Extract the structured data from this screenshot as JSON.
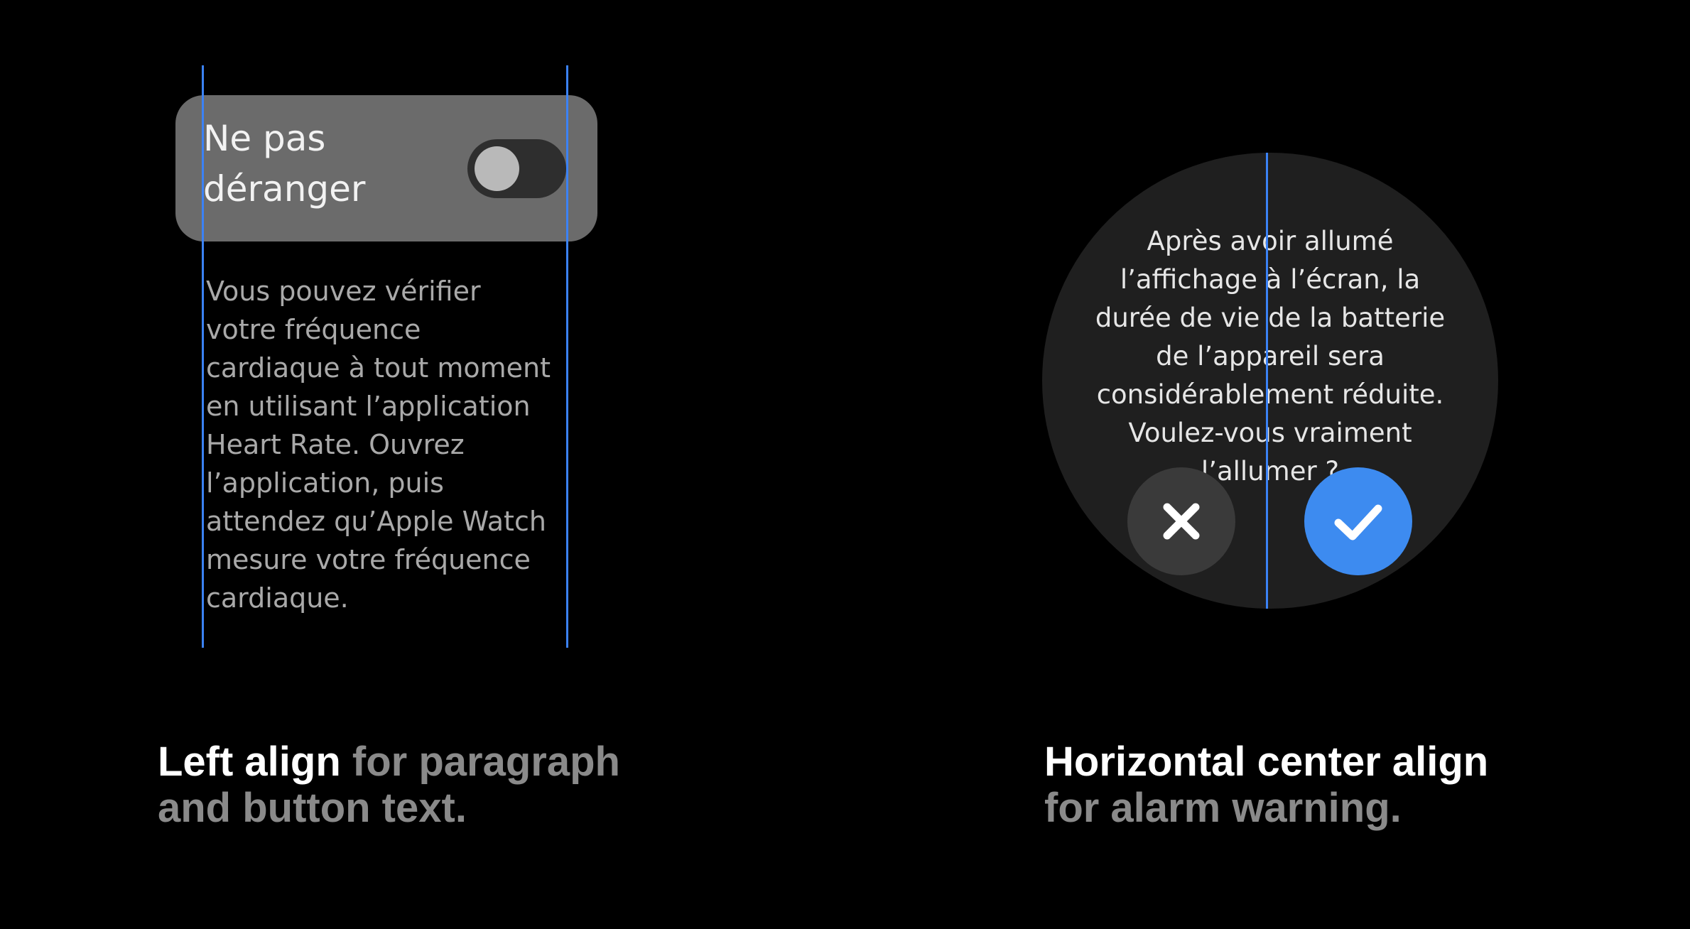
{
  "left_example": {
    "toggle": {
      "label_line1": "Ne pas",
      "label_line2": "déranger",
      "state": "off"
    },
    "paragraph_lines": [
      "Vous pouvez vérifier",
      "votre fréquence",
      "cardiaque à tout moment",
      "en utilisant l’application",
      "Heart Rate. Ouvrez",
      "l’application, puis",
      "attendez qu’Apple Watch",
      "mesure votre fréquence",
      "cardiaque."
    ],
    "caption": {
      "highlight": "Left align",
      "rest_line1": " for paragraph",
      "rest_line2": "and button text."
    }
  },
  "right_example": {
    "alert_lines": [
      "Après avoir allumé",
      "l’affichage à l’écran, la",
      "durée de vie de la batterie",
      "de l’appareil sera",
      "considérablement réduite.",
      "Voulez-vous vraiment",
      "l’allumer ?"
    ],
    "cancel_icon": "close-icon",
    "confirm_icon": "check-icon",
    "caption": {
      "highlight": "Horizontal center align",
      "rest": "for alarm warning."
    }
  },
  "colors": {
    "background": "#000000",
    "guide": "#3b82f6",
    "confirm": "#3d8bf0",
    "card": "#6b6b6b"
  }
}
